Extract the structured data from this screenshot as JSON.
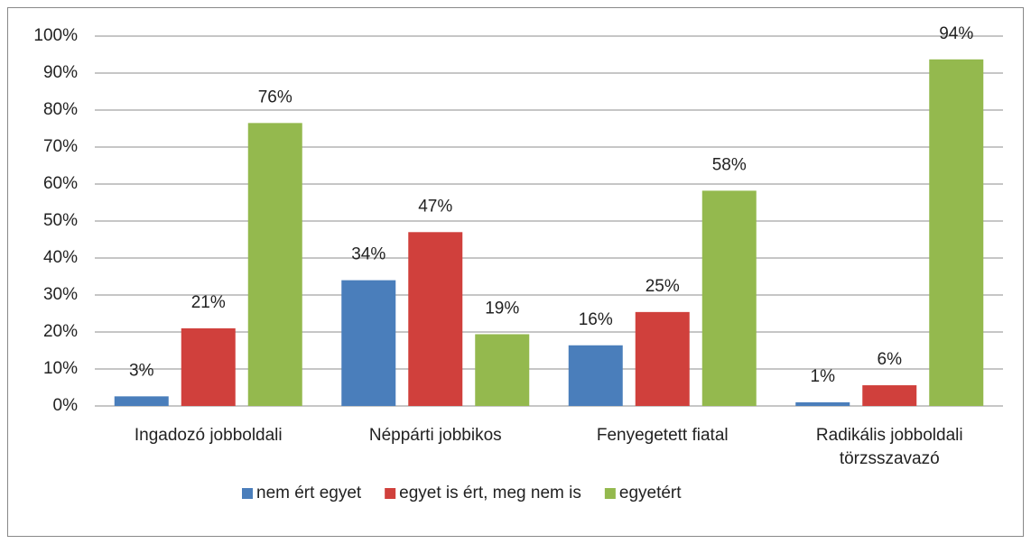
{
  "chart_data": {
    "type": "bar",
    "categories": [
      "Ingadozó jobboldali",
      "Néppárti jobbikos",
      "Fenyegetett fiatal",
      "Radikális jobboldali törzsszavazó"
    ],
    "series": [
      {
        "name": "nem ért egyet",
        "color": "#4a7ebb",
        "values": [
          2.6,
          34,
          16.4,
          1
        ],
        "value_labels": [
          "3%",
          "34%",
          "16%",
          "1%"
        ]
      },
      {
        "name": "egyet is ért, meg nem is",
        "color": "#d0403c",
        "values": [
          21,
          47,
          25.4,
          5.6
        ],
        "value_labels": [
          "21%",
          "47%",
          "25%",
          "6%"
        ]
      },
      {
        "name": "egyetért",
        "color": "#94b94e",
        "values": [
          76.5,
          19.4,
          58.2,
          93.7
        ],
        "value_labels": [
          "76%",
          "19%",
          "58%",
          "94%"
        ]
      }
    ],
    "ylim": [
      0,
      100
    ],
    "yticks": [
      {
        "value": 0,
        "label": "0%"
      },
      {
        "value": 10,
        "label": "10%"
      },
      {
        "value": 20,
        "label": "20%"
      },
      {
        "value": 30,
        "label": "30%"
      },
      {
        "value": 40,
        "label": "40%"
      },
      {
        "value": 50,
        "label": "50%"
      },
      {
        "value": 60,
        "label": "60%"
      },
      {
        "value": 70,
        "label": "70%"
      },
      {
        "value": 80,
        "label": "80%"
      },
      {
        "value": 90,
        "label": "90%"
      },
      {
        "value": 100,
        "label": "100%"
      }
    ],
    "grid": true,
    "legend": "bottom"
  }
}
